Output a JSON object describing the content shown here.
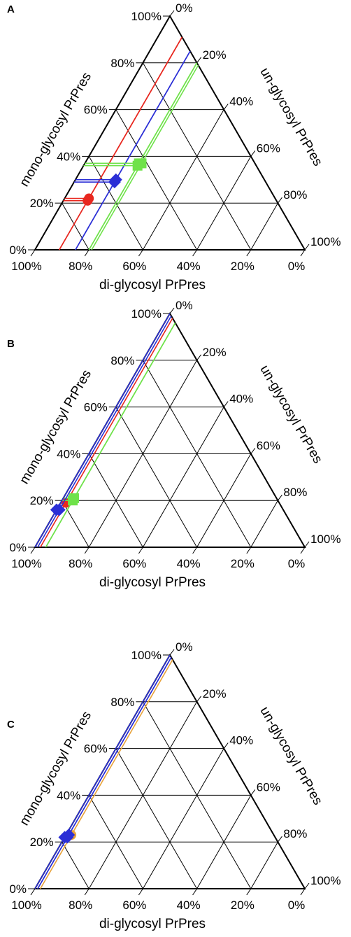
{
  "chart_data": [
    {
      "type": "ternary",
      "panel_label": "A",
      "axis_titles": {
        "left": "mono-glycosyl PrPres",
        "right": "un-glycosyl PrPres",
        "bottom": "di-glycosyl PrPres"
      },
      "ticks": {
        "left": [
          "0%",
          "20%",
          "40%",
          "60%",
          "80%",
          "100%"
        ],
        "right": [
          "0%",
          "20%",
          "40%",
          "60%",
          "80%",
          "100%"
        ],
        "bottom": [
          "100%",
          "80%",
          "60%",
          "40%",
          "20%",
          "0%"
        ]
      },
      "grid": true,
      "series": [
        {
          "color": "#e8271f",
          "marker": "circle",
          "points": [
            {
              "di": 69,
              "mono": 22,
              "un": 9
            },
            {
              "di": 70,
              "mono": 21,
              "un": 9
            }
          ]
        },
        {
          "color": "#2b2fd6",
          "marker": "diamond",
          "points": [
            {
              "di": 56,
              "mono": 29,
              "un": 15
            },
            {
              "di": 55,
              "mono": 30,
              "un": 15
            }
          ]
        },
        {
          "color": "#6fe24a",
          "marker": "square",
          "points": [
            {
              "di": 43,
              "mono": 37,
              "un": 20
            },
            {
              "di": 42,
              "mono": 37,
              "un": 21
            },
            {
              "di": 44,
              "mono": 36,
              "un": 20
            }
          ]
        }
      ]
    },
    {
      "type": "ternary",
      "panel_label": "B",
      "axis_titles": {
        "left": "mono-glycosyl PrPres",
        "right": "un-glycosyl PrPres",
        "bottom": "di-glycosyl PrPres"
      },
      "ticks": {
        "left": [
          "0%",
          "20%",
          "40%",
          "60%",
          "80%",
          "100%"
        ],
        "right": [
          "0%",
          "20%",
          "40%",
          "60%",
          "80%",
          "100%"
        ],
        "bottom": [
          "100%",
          "80%",
          "60%",
          "40%",
          "20%",
          "0%"
        ]
      },
      "grid": true,
      "series": [
        {
          "color": "#e8271f",
          "marker": "circle",
          "points": [
            {
              "di": 79,
              "mono": 19,
              "un": 2
            }
          ]
        },
        {
          "color": "#6fe24a",
          "marker": "square",
          "points": [
            {
              "di": 76,
              "mono": 20,
              "un": 4
            },
            {
              "di": 75,
              "mono": 21,
              "un": 4
            }
          ]
        },
        {
          "color": "#2b2fd6",
          "marker": "diamond",
          "points": [
            {
              "di": 83,
              "mono": 16,
              "un": 1
            },
            {
              "di": 84,
              "mono": 16,
              "un": 0
            }
          ]
        }
      ]
    },
    {
      "type": "ternary",
      "panel_label": "C",
      "axis_titles": {
        "left": "mono-glycosyl PrPres",
        "right": "un-glycosyl PrPres",
        "bottom": "di-glycosyl PrPres"
      },
      "ticks": {
        "left": [
          "0%",
          "20%",
          "40%",
          "60%",
          "80%",
          "100%"
        ],
        "right": [
          "0%",
          "20%",
          "40%",
          "60%",
          "80%",
          "100%"
        ],
        "bottom": [
          "100%",
          "80%",
          "60%",
          "40%",
          "20%",
          "0%"
        ]
      },
      "grid": true,
      "series": [
        {
          "color": "#e8a23a",
          "marker": "circle",
          "points": [
            {
              "di": 75,
              "mono": 23,
              "un": 2
            }
          ]
        },
        {
          "color": "#2b2fd6",
          "marker": "diamond",
          "points": [
            {
              "di": 77,
              "mono": 22,
              "un": 1
            },
            {
              "di": 76,
              "mono": 23,
              "un": 1
            },
            {
              "di": 78,
              "mono": 22,
              "un": 0
            }
          ]
        }
      ]
    }
  ]
}
